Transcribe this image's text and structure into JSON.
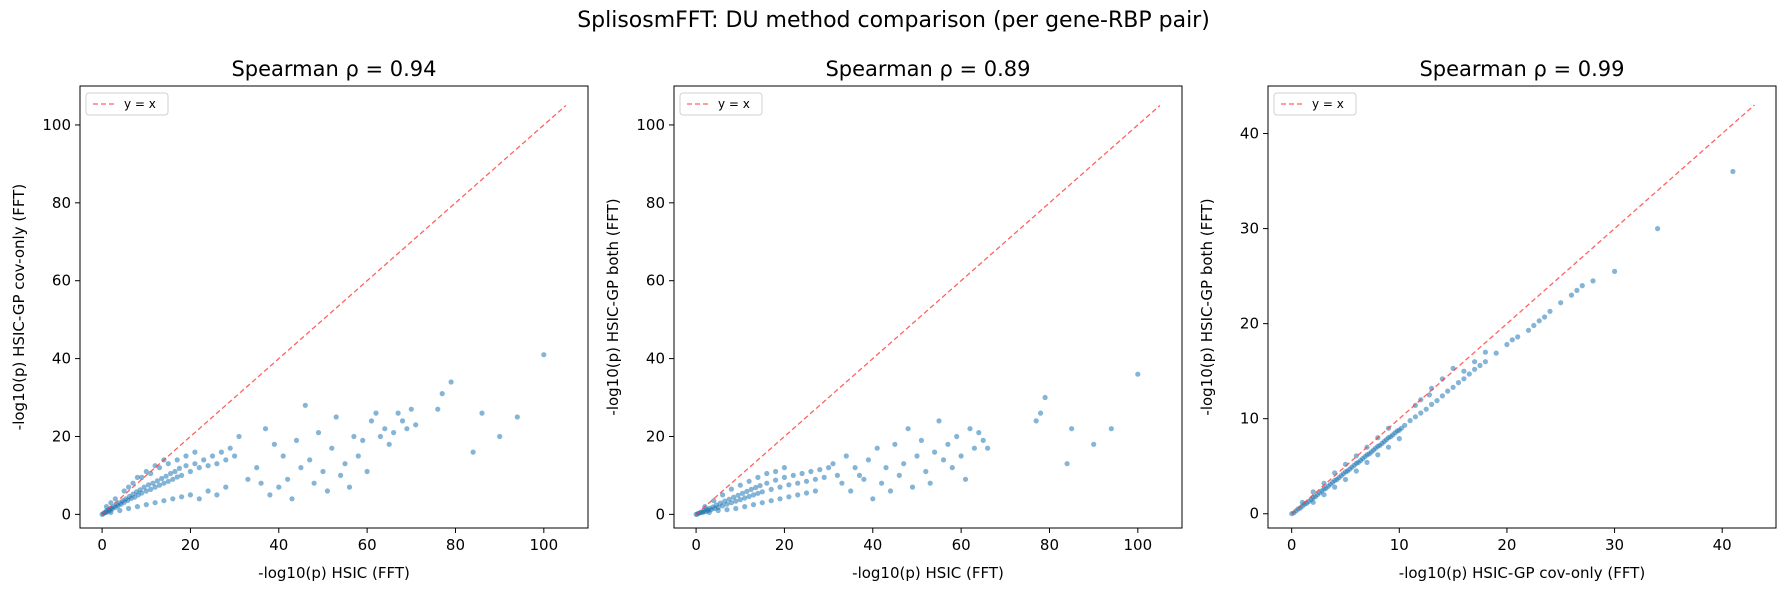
{
  "figure": {
    "suptitle": "SplisosmFFT: DU method comparison (per gene-RBP pair)"
  },
  "chart_data": [
    {
      "type": "scatter",
      "title": "Spearman ρ = 0.94",
      "xlabel": "-log10(p)  HSIC (FFT)",
      "ylabel": "-log10(p)  HSIC-GP cov-only (FFT)",
      "xlim": [
        -5,
        110
      ],
      "ylim": [
        -3.5,
        110
      ],
      "xticks": [
        0,
        20,
        40,
        60,
        80,
        100
      ],
      "yticks": [
        0,
        20,
        40,
        60,
        80,
        100
      ],
      "reference_line": {
        "label": "y = x",
        "from": 0,
        "to": 105,
        "color": "#ff3b3b"
      },
      "legend": "top-left",
      "point_color": "#1f77b4",
      "points": [
        [
          0,
          0
        ],
        [
          0.3,
          0.2
        ],
        [
          0.5,
          0.4
        ],
        [
          0.8,
          0.5
        ],
        [
          1,
          0.9
        ],
        [
          1.2,
          0.6
        ],
        [
          1.5,
          1.2
        ],
        [
          1.8,
          1
        ],
        [
          2,
          1.6
        ],
        [
          2.3,
          1.4
        ],
        [
          2.6,
          2
        ],
        [
          3,
          1.8
        ],
        [
          3.3,
          2.5
        ],
        [
          3.6,
          2.2
        ],
        [
          4,
          3
        ],
        [
          4.3,
          2.6
        ],
        [
          4.7,
          3.5
        ],
        [
          5,
          3.1
        ],
        [
          5.4,
          4
        ],
        [
          5.8,
          3.6
        ],
        [
          6.2,
          4.6
        ],
        [
          6.6,
          4.1
        ],
        [
          7,
          5.2
        ],
        [
          7.4,
          4.4
        ],
        [
          7.8,
          5.8
        ],
        [
          8.2,
          5
        ],
        [
          8.6,
          6.3
        ],
        [
          9,
          5.5
        ],
        [
          9.5,
          7
        ],
        [
          10,
          6
        ],
        [
          10.5,
          7.6
        ],
        [
          11,
          6.4
        ],
        [
          11.5,
          8
        ],
        [
          12,
          7
        ],
        [
          12.5,
          8.6
        ],
        [
          13,
          7.5
        ],
        [
          13.5,
          9.2
        ],
        [
          14,
          8
        ],
        [
          14.5,
          9.8
        ],
        [
          15,
          8.5
        ],
        [
          15.5,
          10.5
        ],
        [
          16,
          9
        ],
        [
          16.5,
          11
        ],
        [
          17,
          9.6
        ],
        [
          17.5,
          11.8
        ],
        [
          18,
          10
        ],
        [
          19,
          12.5
        ],
        [
          20,
          11
        ],
        [
          21,
          13
        ],
        [
          22,
          12
        ],
        [
          23,
          14
        ],
        [
          24,
          12.5
        ],
        [
          25,
          15
        ],
        [
          26,
          13
        ],
        [
          27,
          16
        ],
        [
          28,
          14
        ],
        [
          29,
          17
        ],
        [
          30,
          15
        ],
        [
          2,
          0.5
        ],
        [
          4,
          1
        ],
        [
          6,
          1.5
        ],
        [
          8,
          2
        ],
        [
          10,
          2.5
        ],
        [
          12,
          3
        ],
        [
          14,
          3.5
        ],
        [
          16,
          4
        ],
        [
          18,
          4.5
        ],
        [
          20,
          5
        ],
        [
          22,
          4
        ],
        [
          24,
          6
        ],
        [
          26,
          5
        ],
        [
          28,
          7
        ],
        [
          3,
          4
        ],
        [
          5,
          6
        ],
        [
          7,
          8
        ],
        [
          9,
          9.5
        ],
        [
          11,
          10.5
        ],
        [
          13,
          12
        ],
        [
          15,
          13
        ],
        [
          17,
          14
        ],
        [
          19,
          15
        ],
        [
          21,
          16
        ],
        [
          1,
          2
        ],
        [
          2,
          3
        ],
        [
          6,
          7
        ],
        [
          8,
          9.5
        ],
        [
          10,
          11
        ],
        [
          12,
          12.5
        ],
        [
          14,
          14
        ],
        [
          31,
          20
        ],
        [
          33,
          9
        ],
        [
          35,
          12
        ],
        [
          36,
          8
        ],
        [
          37,
          22
        ],
        [
          38,
          5
        ],
        [
          39,
          18
        ],
        [
          40,
          7
        ],
        [
          41,
          15
        ],
        [
          42,
          9
        ],
        [
          43,
          4
        ],
        [
          44,
          19
        ],
        [
          45,
          12
        ],
        [
          46,
          28
        ],
        [
          47,
          14
        ],
        [
          48,
          8
        ],
        [
          49,
          21
        ],
        [
          50,
          11
        ],
        [
          51,
          6
        ],
        [
          52,
          17
        ],
        [
          53,
          25
        ],
        [
          54,
          10
        ],
        [
          55,
          13
        ],
        [
          56,
          7
        ],
        [
          57,
          20
        ],
        [
          58,
          15
        ],
        [
          59,
          19
        ],
        [
          60,
          11
        ],
        [
          61,
          24
        ],
        [
          62,
          26
        ],
        [
          63,
          20
        ],
        [
          64,
          22
        ],
        [
          65,
          18
        ],
        [
          66,
          21
        ],
        [
          67,
          26
        ],
        [
          68,
          24
        ],
        [
          69,
          22
        ],
        [
          70,
          27
        ],
        [
          71,
          23
        ],
        [
          76,
          27
        ],
        [
          77,
          31
        ],
        [
          79,
          34
        ],
        [
          84,
          16
        ],
        [
          86,
          26
        ],
        [
          90,
          20
        ],
        [
          94,
          25
        ],
        [
          100,
          41
        ]
      ]
    },
    {
      "type": "scatter",
      "title": "Spearman ρ = 0.89",
      "xlabel": "-log10(p)  HSIC (FFT)",
      "ylabel": "-log10(p)  HSIC-GP both (FFT)",
      "xlim": [
        -5,
        110
      ],
      "ylim": [
        -3.5,
        110
      ],
      "xticks": [
        0,
        20,
        40,
        60,
        80,
        100
      ],
      "yticks": [
        0,
        20,
        40,
        60,
        80,
        100
      ],
      "reference_line": {
        "label": "y = x",
        "from": 0,
        "to": 105,
        "color": "#ff3b3b"
      },
      "legend": "top-left",
      "point_color": "#1f77b4",
      "points": [
        [
          0,
          0
        ],
        [
          0.3,
          0.1
        ],
        [
          0.6,
          0.3
        ],
        [
          0.9,
          0.4
        ],
        [
          1.2,
          0.6
        ],
        [
          1.5,
          0.5
        ],
        [
          1.8,
          0.9
        ],
        [
          2.1,
          0.7
        ],
        [
          2.4,
          1.2
        ],
        [
          2.7,
          1
        ],
        [
          3,
          1.5
        ],
        [
          3.4,
          1.2
        ],
        [
          3.8,
          1.9
        ],
        [
          4.2,
          1.5
        ],
        [
          4.6,
          2.4
        ],
        [
          5,
          1.8
        ],
        [
          5.5,
          2.9
        ],
        [
          6,
          2.2
        ],
        [
          6.5,
          3.4
        ],
        [
          7,
          2.6
        ],
        [
          7.5,
          3.9
        ],
        [
          8,
          3
        ],
        [
          8.5,
          4.4
        ],
        [
          9,
          3.4
        ],
        [
          9.5,
          4.9
        ],
        [
          10,
          3.8
        ],
        [
          10.5,
          5.4
        ],
        [
          11,
          4.2
        ],
        [
          11.5,
          5.9
        ],
        [
          12,
          4.6
        ],
        [
          12.5,
          6.4
        ],
        [
          13,
          5
        ],
        [
          13.5,
          6.9
        ],
        [
          14,
          5.4
        ],
        [
          14.5,
          7.4
        ],
        [
          15,
          5.8
        ],
        [
          16,
          8
        ],
        [
          17,
          6.4
        ],
        [
          18,
          8.8
        ],
        [
          19,
          7
        ],
        [
          20,
          9.5
        ],
        [
          21,
          7.6
        ],
        [
          22,
          10
        ],
        [
          23,
          8
        ],
        [
          24,
          10.5
        ],
        [
          25,
          8.5
        ],
        [
          26,
          11
        ],
        [
          27,
          9
        ],
        [
          28,
          11.5
        ],
        [
          29,
          9.5
        ],
        [
          30,
          12
        ],
        [
          2,
          2
        ],
        [
          4,
          3.5
        ],
        [
          6,
          5
        ],
        [
          8,
          6.5
        ],
        [
          10,
          7.5
        ],
        [
          12,
          8.5
        ],
        [
          14,
          9.5
        ],
        [
          16,
          10.5
        ],
        [
          18,
          11
        ],
        [
          20,
          12
        ],
        [
          3,
          0.5
        ],
        [
          5,
          1
        ],
        [
          7,
          1.2
        ],
        [
          9,
          1.5
        ],
        [
          11,
          2
        ],
        [
          13,
          2.5
        ],
        [
          15,
          3
        ],
        [
          17,
          3.5
        ],
        [
          19,
          4
        ],
        [
          21,
          4.5
        ],
        [
          23,
          5
        ],
        [
          25,
          5.5
        ],
        [
          27,
          6
        ],
        [
          31,
          13
        ],
        [
          32,
          10
        ],
        [
          33,
          8
        ],
        [
          34,
          15
        ],
        [
          35,
          6
        ],
        [
          36,
          12
        ],
        [
          37,
          10
        ],
        [
          38,
          9
        ],
        [
          39,
          14
        ],
        [
          40,
          4
        ],
        [
          41,
          17
        ],
        [
          42,
          8
        ],
        [
          43,
          12
        ],
        [
          44,
          6
        ],
        [
          45,
          18
        ],
        [
          46,
          10
        ],
        [
          47,
          13
        ],
        [
          48,
          22
        ],
        [
          49,
          7
        ],
        [
          50,
          15
        ],
        [
          51,
          19
        ],
        [
          52,
          11
        ],
        [
          53,
          8
        ],
        [
          54,
          16
        ],
        [
          55,
          24
        ],
        [
          56,
          14
        ],
        [
          57,
          18
        ],
        [
          58,
          12
        ],
        [
          59,
          20
        ],
        [
          60,
          15
        ],
        [
          61,
          9
        ],
        [
          62,
          22
        ],
        [
          63,
          17
        ],
        [
          64,
          21
        ],
        [
          65,
          19
        ],
        [
          66,
          17
        ],
        [
          77,
          24
        ],
        [
          78,
          26
        ],
        [
          79,
          30
        ],
        [
          84,
          13
        ],
        [
          85,
          22
        ],
        [
          90,
          18
        ],
        [
          94,
          22
        ],
        [
          100,
          36
        ]
      ]
    },
    {
      "type": "scatter",
      "title": "Spearman ρ = 0.99",
      "xlabel": "-log10(p)  HSIC-GP cov-only (FFT)",
      "ylabel": "-log10(p)  HSIC-GP both (FFT)",
      "xlim": [
        -2.2,
        45
      ],
      "ylim": [
        -1.5,
        45
      ],
      "xticks": [
        0,
        10,
        20,
        30,
        40
      ],
      "yticks": [
        0,
        10,
        20,
        30,
        40
      ],
      "reference_line": {
        "label": "y = x",
        "from": 0,
        "to": 43,
        "color": "#ff3b3b"
      },
      "legend": "top-left",
      "point_color": "#1f77b4",
      "points": [
        [
          0,
          0
        ],
        [
          0.2,
          0.1
        ],
        [
          0.4,
          0.3
        ],
        [
          0.6,
          0.5
        ],
        [
          0.8,
          0.6
        ],
        [
          1,
          0.8
        ],
        [
          1.2,
          1
        ],
        [
          1.4,
          1.1
        ],
        [
          1.6,
          1.3
        ],
        [
          1.8,
          1.5
        ],
        [
          2,
          1.7
        ],
        [
          2.2,
          1.8
        ],
        [
          2.4,
          2
        ],
        [
          2.6,
          2.2
        ],
        [
          2.8,
          2.4
        ],
        [
          3,
          2.6
        ],
        [
          3.2,
          2.7
        ],
        [
          3.4,
          2.9
        ],
        [
          3.6,
          3.1
        ],
        [
          3.8,
          3.3
        ],
        [
          4,
          3.5
        ],
        [
          4.2,
          3.6
        ],
        [
          4.4,
          3.8
        ],
        [
          4.6,
          4
        ],
        [
          4.8,
          4.2
        ],
        [
          5,
          4.4
        ],
        [
          5.2,
          4.5
        ],
        [
          5.4,
          4.7
        ],
        [
          5.6,
          4.9
        ],
        [
          5.8,
          5.1
        ],
        [
          6,
          5.3
        ],
        [
          6.2,
          5.4
        ],
        [
          6.4,
          5.6
        ],
        [
          6.6,
          5.8
        ],
        [
          6.8,
          6
        ],
        [
          7,
          6.2
        ],
        [
          7.2,
          6.3
        ],
        [
          7.4,
          6.5
        ],
        [
          7.6,
          6.7
        ],
        [
          7.8,
          6.9
        ],
        [
          8,
          7.1
        ],
        [
          8.2,
          7.2
        ],
        [
          8.4,
          7.4
        ],
        [
          8.6,
          7.6
        ],
        [
          8.8,
          7.8
        ],
        [
          9,
          8
        ],
        [
          9.2,
          8.1
        ],
        [
          9.4,
          8.3
        ],
        [
          9.6,
          8.5
        ],
        [
          9.8,
          8.7
        ],
        [
          10,
          8.8
        ],
        [
          10.2,
          9
        ],
        [
          10.5,
          9.3
        ],
        [
          1,
          1.2
        ],
        [
          2,
          2.3
        ],
        [
          3,
          3.2
        ],
        [
          4,
          4.3
        ],
        [
          5,
          5.2
        ],
        [
          6,
          6.1
        ],
        [
          7,
          7
        ],
        [
          8,
          8
        ],
        [
          9,
          9
        ],
        [
          2,
          1.2
        ],
        [
          3,
          2
        ],
        [
          4,
          2.8
        ],
        [
          5,
          3.6
        ],
        [
          6,
          4.5
        ],
        [
          7,
          5.4
        ],
        [
          8,
          6.2
        ],
        [
          9,
          7
        ],
        [
          10,
          7.9
        ],
        [
          11,
          9.8
        ],
        [
          11.5,
          10.2
        ],
        [
          12,
          10.6
        ],
        [
          12.5,
          11
        ],
        [
          13,
          11.5
        ],
        [
          13.5,
          11.9
        ],
        [
          14,
          12.4
        ],
        [
          14.5,
          12.9
        ],
        [
          15,
          13.3
        ],
        [
          15.5,
          13.8
        ],
        [
          16,
          14.2
        ],
        [
          16.5,
          14.7
        ],
        [
          17,
          15.2
        ],
        [
          17.5,
          15.6
        ],
        [
          18,
          16
        ],
        [
          19,
          16.9
        ],
        [
          20,
          17.8
        ],
        [
          20.5,
          18.3
        ],
        [
          21,
          18.6
        ],
        [
          22,
          19.3
        ],
        [
          22.5,
          19.8
        ],
        [
          23,
          20.3
        ],
        [
          23.5,
          20.7
        ],
        [
          24,
          21.3
        ],
        [
          25,
          22.2
        ],
        [
          26,
          23
        ],
        [
          26.5,
          23.5
        ],
        [
          27,
          24
        ],
        [
          28,
          24.5
        ],
        [
          30,
          25.5
        ],
        [
          34,
          30
        ],
        [
          41,
          36
        ],
        [
          12,
          12
        ],
        [
          13,
          13.2
        ],
        [
          14,
          14.2
        ],
        [
          15,
          15.3
        ],
        [
          11.5,
          11.4
        ],
        [
          12.8,
          12.5
        ],
        [
          16,
          15
        ],
        [
          17,
          16
        ],
        [
          18,
          17
        ]
      ]
    }
  ]
}
